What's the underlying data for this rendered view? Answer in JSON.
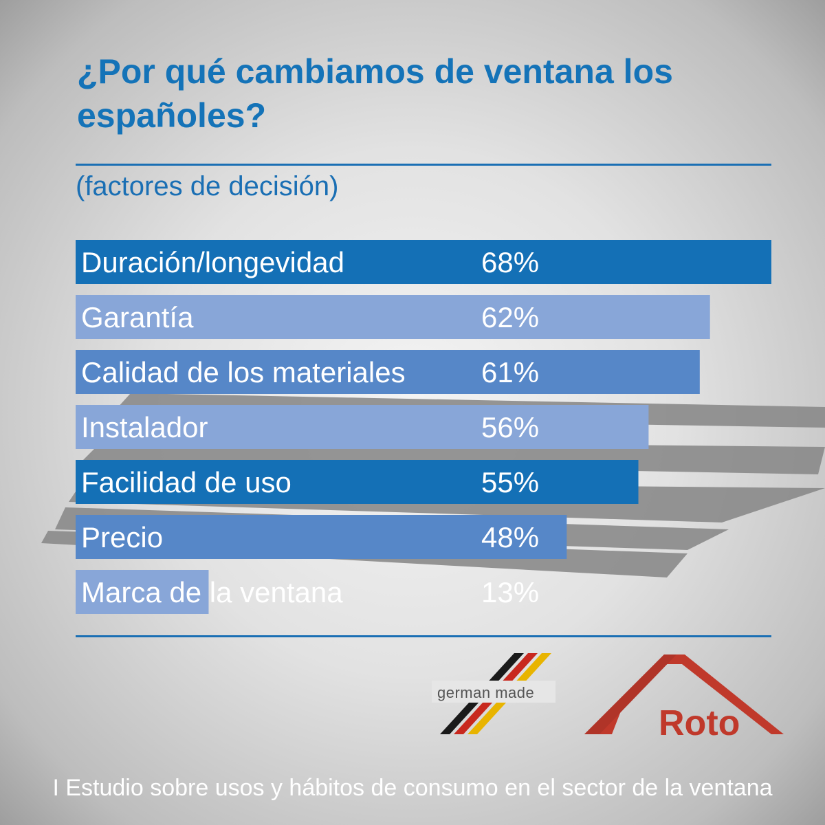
{
  "header": {
    "title": "¿Por qué cambiamos de ventana los españoles?",
    "subtitle": "(factores de decisión)"
  },
  "chart_data": {
    "type": "bar",
    "orientation": "horizontal",
    "categories": [
      "Duración/longevidad",
      "Garantía",
      "Calidad de los materiales",
      "Instalador",
      "Facilidad de uso",
      "Precio",
      "Marca de la ventana"
    ],
    "values": [
      68,
      62,
      61,
      56,
      55,
      48,
      13
    ],
    "value_labels": [
      "68%",
      "62%",
      "61%",
      "56%",
      "55%",
      "48%",
      "13%"
    ],
    "unit": "%",
    "xlim": [
      0,
      68
    ],
    "colors": [
      "#1470b6",
      "#88a6d8",
      "#5687c8",
      "#88a6d8",
      "#1470b6",
      "#5687c8",
      "#88a6d8"
    ]
  },
  "logos": {
    "german_made": "german made",
    "roto": "Roto"
  },
  "footer": {
    "text": "I Estudio sobre usos y hábitos de consumo en el sector de la ventana"
  }
}
